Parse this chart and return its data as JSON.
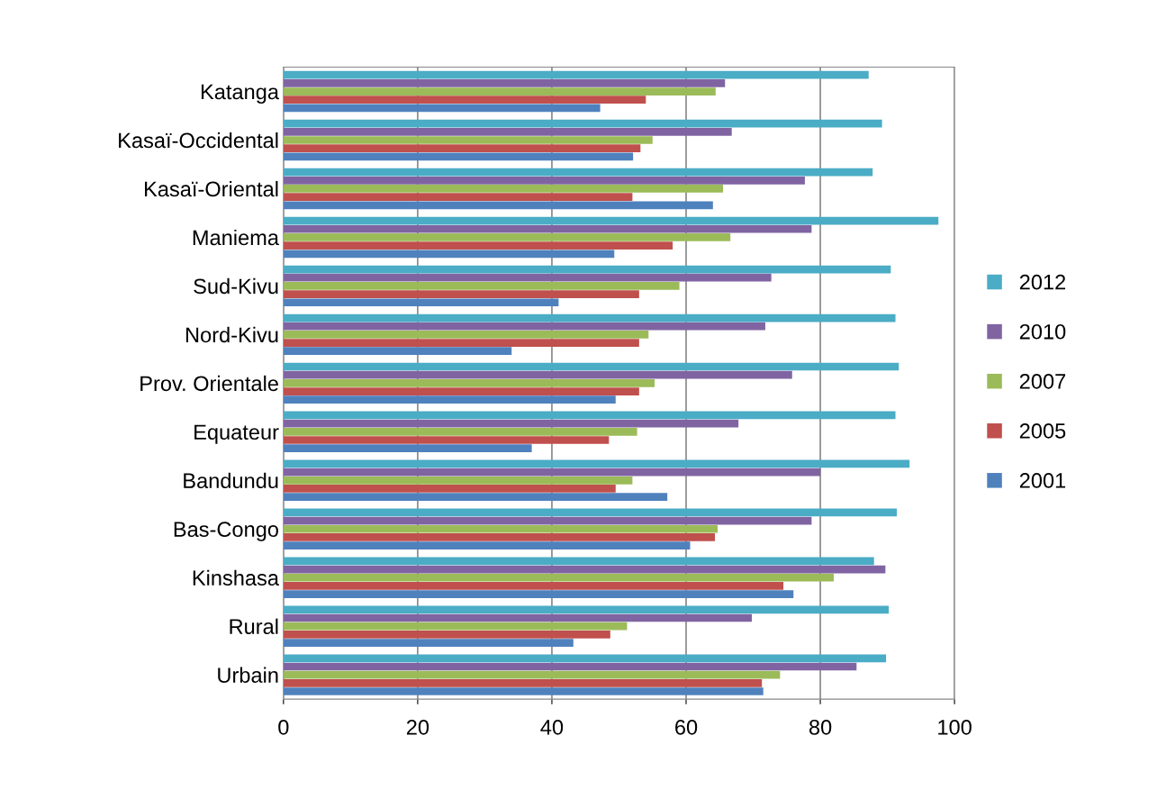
{
  "chart_data": {
    "type": "bar",
    "orientation": "horizontal",
    "categories": [
      "Katanga",
      "Kasaï-Occidental",
      "Kasaï-Oriental",
      "Maniema",
      "Sud-Kivu",
      "Nord-Kivu",
      "Prov. Orientale",
      "Equateur",
      "Bandundu",
      "Bas-Congo",
      "Kinshasa",
      "Rural",
      "Urbain"
    ],
    "series": [
      {
        "name": "2001",
        "color": "#4f81bd",
        "values": [
          47.2,
          52.1,
          64,
          49.3,
          41,
          34,
          49.5,
          37,
          57.2,
          60.6,
          76,
          43.2,
          71.5
        ]
      },
      {
        "name": "2005",
        "color": "#c0504d",
        "values": [
          54,
          53.2,
          52,
          58,
          53,
          53,
          53,
          48.5,
          49.5,
          64.3,
          74.5,
          48.7,
          71.3
        ]
      },
      {
        "name": "2007",
        "color": "#9bbb59",
        "values": [
          64.4,
          55,
          65.5,
          66.6,
          59,
          54.4,
          55.3,
          52.7,
          52,
          64.7,
          82,
          51.2,
          74
        ]
      },
      {
        "name": "2010",
        "color": "#8064a2",
        "values": [
          65.8,
          66.8,
          77.7,
          78.7,
          72.7,
          71.8,
          75.8,
          67.8,
          80,
          78.7,
          89.7,
          69.8,
          85.4
        ]
      },
      {
        "name": "2012",
        "color": "#4bacc6",
        "values": [
          87.2,
          89.2,
          87.8,
          97.6,
          90.5,
          91.2,
          91.7,
          91.2,
          93.3,
          91.4,
          88,
          90.2,
          89.8
        ]
      }
    ],
    "xlim": [
      0,
      100
    ],
    "xticks": [
      0,
      20,
      40,
      60,
      80,
      100
    ],
    "grid": "x",
    "legend": "right"
  }
}
